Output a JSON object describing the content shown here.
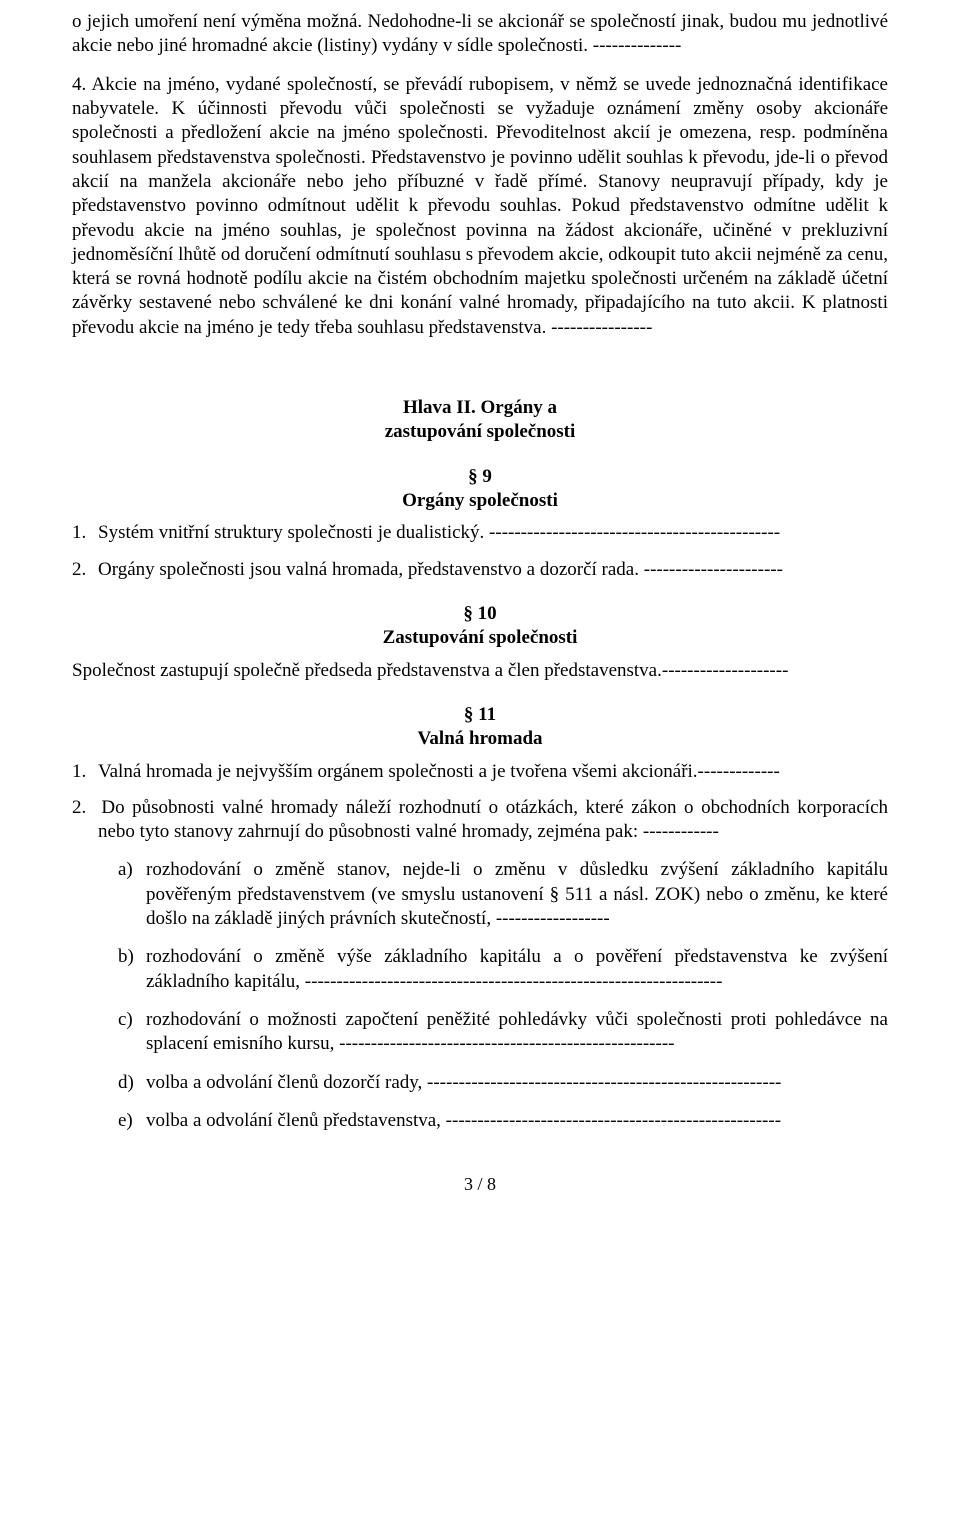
{
  "para_intro": "o jejich umoření není výměna možná. Nedohodne-li se akcionář se společností jinak, budou mu jednotlivé akcie nebo jiné hromadné akcie (listiny) vydány v sídle společnosti. --------------",
  "para4": "4.  Akcie na jméno, vydané společností, se převádí rubopisem, v němž se uvede jednoznačná identifikace nabyvatele. K účinnosti převodu vůči společnosti se vyžaduje oznámení změny osoby akcionáře společnosti a předložení akcie na jméno společnosti. Převoditelnost akcií je omezena, resp. podmíněna souhlasem představenstva společnosti. Představenstvo je povinno udělit souhlas k převodu, jde-li o převod akcií na manžela akcionáře nebo jeho příbuzné v řadě přímé. Stanovy neupravují případy, kdy je představenstvo povinno odmítnout udělit k převodu souhlas. Pokud představenstvo odmítne udělit k převodu akcie na jméno souhlas, je společnost povinna na žádost akcionáře, učiněné v prekluzivní jednoměsíční lhůtě od doručení odmítnutí souhlasu s převodem akcie, odkoupit tuto akcii nejméně za cenu, která se rovná hodnotě podílu akcie na čistém obchodním majetku společnosti určeném na základě účetní závěrky sestavené nebo schválené ke dni konání valné hromady, připadajícího na tuto akcii. K platnosti převodu akcie na jméno je tedy třeba souhlasu představenstva. ----------------",
  "hlava2_line1": "Hlava II. Orgány a",
  "hlava2_line2": "zastupování společnosti",
  "s9_num": "§ 9",
  "s9_name": "Orgány společnosti",
  "s9_items": [
    {
      "marker": "1.",
      "text": "Systém vnitřní struktury společnosti je dualistický. ----------------------------------------------"
    },
    {
      "marker": "2.",
      "text": "Orgány společnosti jsou valná hromada, představenstvo a dozorčí rada. ----------------------"
    }
  ],
  "s10_num": "§ 10",
  "s10_name": "Zastupování společnosti",
  "s10_text": "Společnost zastupují společně předseda představenstva a člen představenstva.--------------------",
  "s11_num": "§ 11",
  "s11_name": "Valná hromada",
  "s11_item1": {
    "marker": "1.",
    "text": "Valná hromada je nejvyšším orgánem společnosti a je tvořena všemi akcionáři.-------------"
  },
  "s11_item2": {
    "marker": "2.",
    "text": "Do působnosti valné hromady náleží rozhodnutí o otázkách, které zákon o obchodních korporacích nebo tyto stanovy zahrnují do působnosti valné hromady, zejména pak: ------------"
  },
  "s11_letters": [
    {
      "marker": "a)",
      "text": "rozhodování o změně stanov, nejde-li o změnu v důsledku zvýšení základního kapitálu pověřeným představenstvem (ve smyslu ustanovení § 511 a násl. ZOK) nebo o změnu, ke které došlo na základě jiných právních skutečností, ------------------"
    },
    {
      "marker": "b)",
      "text": "rozhodování o změně výše základního kapitálu a o pověření představenstva ke zvýšení základního kapitálu, ------------------------------------------------------------------"
    },
    {
      "marker": "c)",
      "text": "rozhodování o možnosti započtení peněžité pohledávky vůči společnosti proti pohledávce na splacení emisního kursu, -----------------------------------------------------"
    },
    {
      "marker": "d)",
      "text": "volba a odvolání členů dozorčí rady, --------------------------------------------------------"
    },
    {
      "marker": "e)",
      "text": "volba a odvolání členů představenstva, -----------------------------------------------------"
    }
  ],
  "footer": "3 / 8"
}
